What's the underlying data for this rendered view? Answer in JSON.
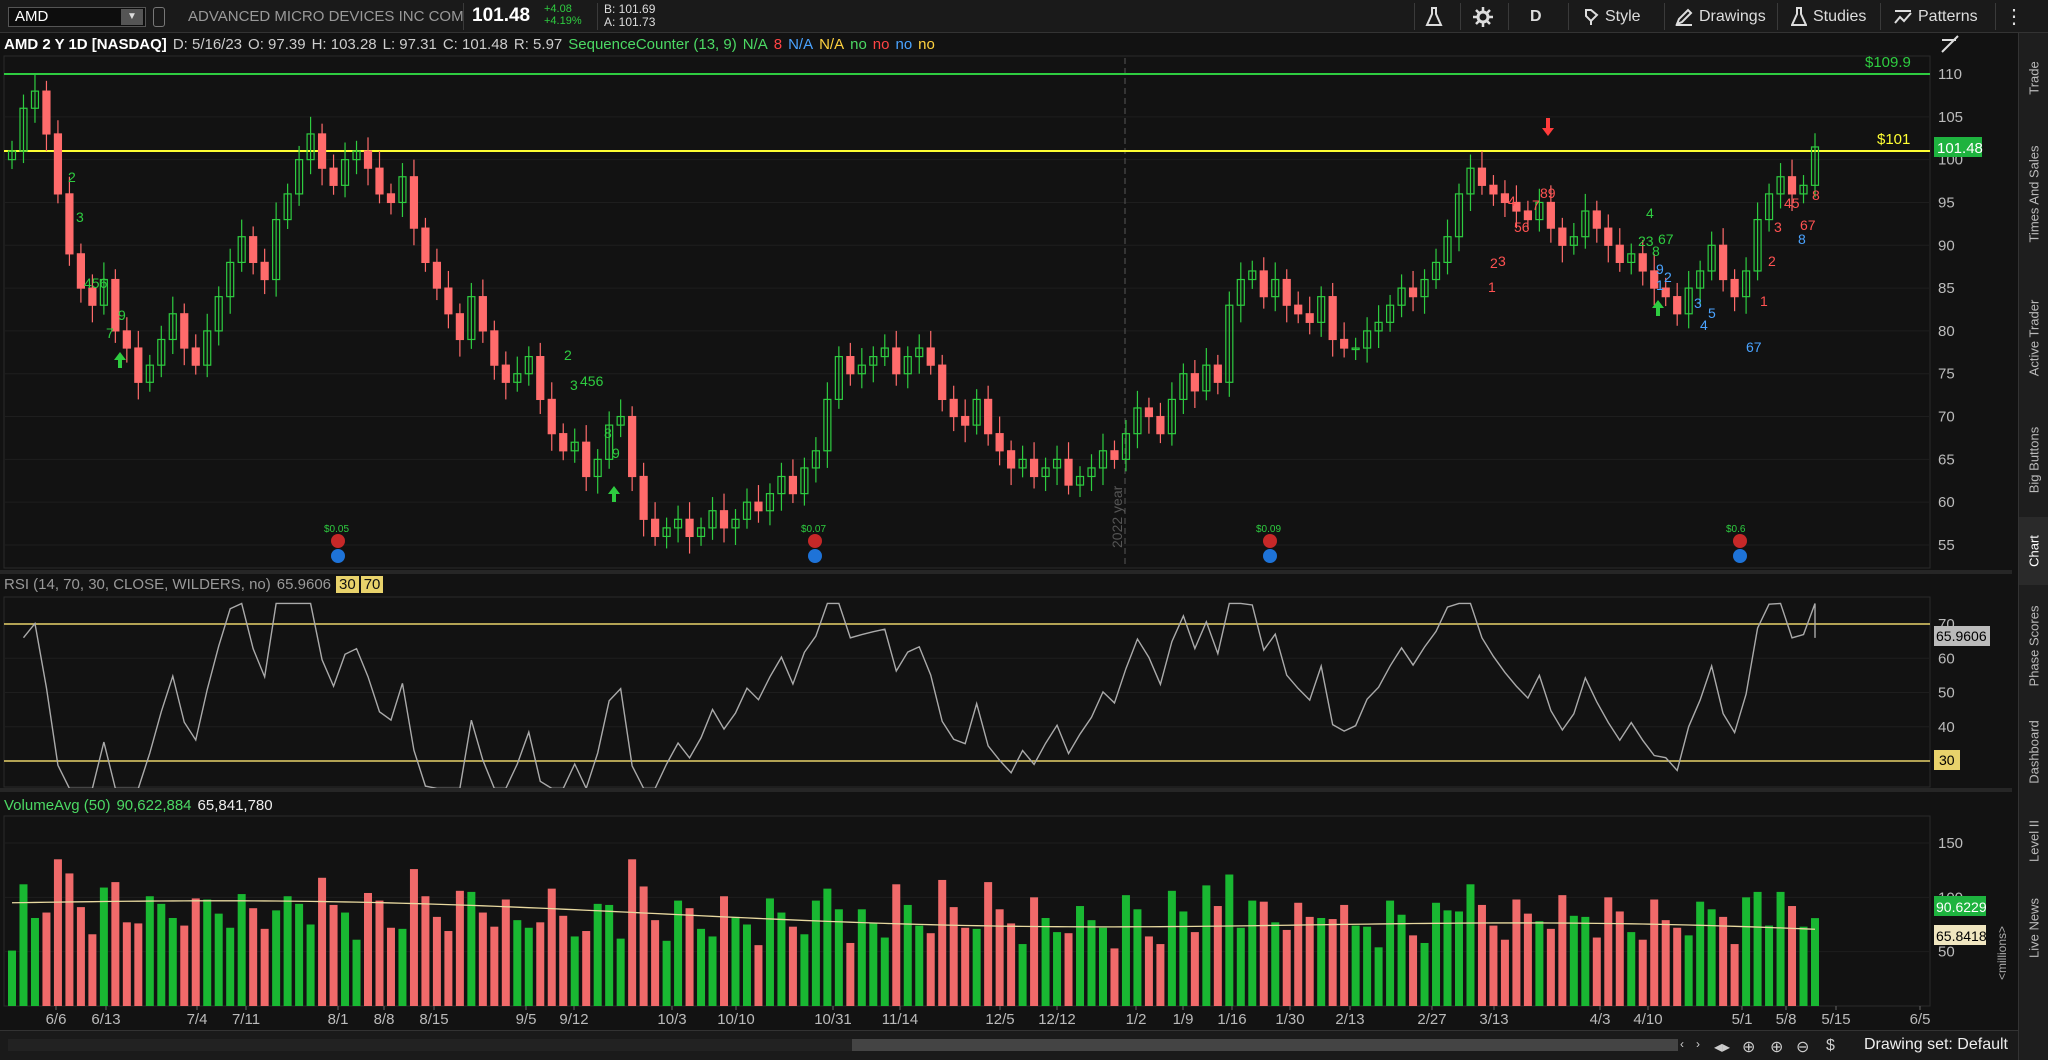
{
  "toolbar": {
    "symbol": "AMD",
    "company": "ADVANCED MICRO DEVICES INC COM",
    "last": "101.48",
    "change": "+4.08",
    "change_pct": "+4.19%",
    "bid": "B: 101.69",
    "ask": "A: 101.73",
    "aggregation": "D",
    "style": "Style",
    "drawings": "Drawings",
    "studies": "Studies",
    "patterns": "Patterns"
  },
  "price_header": {
    "title": "AMD 2 Y 1D [NASDAQ]",
    "date": "D: 5/16/23",
    "open": "O: 97.39",
    "high": "H: 103.28",
    "low": "L: 97.31",
    "close": "C: 101.48",
    "range": "R: 5.97",
    "study": "SequenceCounter (13, 9)",
    "flags": [
      "N/A",
      "8",
      "N/A",
      "N/A",
      "no",
      "no",
      "no",
      "no"
    ]
  },
  "rsi_header": {
    "label": "RSI (14, 70, 30, CLOSE, WILDERS, no)",
    "value": "65.9606",
    "low": "30",
    "high": "70"
  },
  "volume_header": {
    "label": "VolumeAvg (50)",
    "avg": "90,622,884",
    "volume": "65,841,780"
  },
  "price_axis": {
    "ticks": [
      "110",
      "105",
      "100",
      "95",
      "90",
      "85",
      "80",
      "75",
      "70",
      "65",
      "60",
      "55"
    ],
    "last_label": "101.48",
    "line_high": "$109.9",
    "line_mid": "$101"
  },
  "rsi_axis": {
    "ticks": [
      "70",
      "60",
      "50",
      "40"
    ],
    "value_label": "65.9606",
    "low_label": "30"
  },
  "volume_axis": {
    "ticks": [
      "150",
      "100",
      "50"
    ],
    "avg_label": "90.6229",
    "vol_label": "65.8418",
    "unit": "<millions>"
  },
  "time_axis": [
    "6/6",
    "6/13",
    "7/4",
    "7/11",
    "8/1",
    "8/8",
    "8/15",
    "9/5",
    "9/12",
    "10/3",
    "10/10",
    "10/31",
    "11/14",
    "12/5",
    "12/12",
    "1/2",
    "1/9",
    "1/16",
    "1/30",
    "2/13",
    "2/27",
    "3/13",
    "4/3",
    "4/10",
    "5/1",
    "5/8",
    "5/15",
    "6/5"
  ],
  "year_marker": "2022 year",
  "dividends": [
    "$0.05",
    "$0.07",
    "$0.09",
    "$0.6"
  ],
  "side_tabs": [
    "Trade",
    "Times And Sales",
    "Active Trader",
    "Big Buttons",
    "Chart",
    "Phase Scores",
    "Dashboard",
    "Level II",
    "Live News"
  ],
  "bottom": {
    "drawing_set": "Drawing set: Default"
  },
  "chart_data": {
    "type": "candlestick",
    "close_series_start": 100,
    "closes": [
      101,
      106,
      108,
      103,
      96,
      89,
      85,
      83,
      86,
      80,
      78,
      74,
      76,
      79,
      82,
      78,
      76,
      80,
      84,
      88,
      91,
      88,
      86,
      93,
      96,
      100,
      103,
      99,
      97,
      100,
      101,
      99,
      96,
      95,
      98,
      92,
      88,
      85,
      82,
      79,
      84,
      80,
      76,
      74,
      75,
      77,
      72,
      68,
      66,
      67,
      63,
      65,
      69,
      70,
      63,
      58,
      56,
      57,
      58,
      56,
      57,
      59,
      57,
      58,
      60,
      59,
      61,
      63,
      61,
      64,
      66,
      72,
      77,
      75,
      76,
      77,
      78,
      75,
      77,
      78,
      76,
      72,
      70,
      69,
      72,
      68,
      66,
      64,
      65,
      63,
      64,
      65,
      62,
      63,
      64,
      66,
      65,
      68,
      71,
      70,
      68,
      72,
      75,
      73,
      76,
      74,
      83,
      86,
      87,
      84,
      86,
      83,
      82,
      81,
      84,
      79,
      78,
      78,
      80,
      81,
      83,
      85,
      84,
      86,
      88,
      91,
      96,
      99,
      97,
      96,
      95,
      94,
      93,
      95,
      92,
      90,
      91,
      94,
      92,
      90,
      88,
      89,
      87,
      85,
      84,
      82,
      85,
      87,
      90,
      86,
      84,
      87,
      93,
      96,
      98,
      96,
      97,
      101.48
    ],
    "rsi_value": 65.9606,
    "volume_avg": 90.6229,
    "volume": 65.8418
  }
}
